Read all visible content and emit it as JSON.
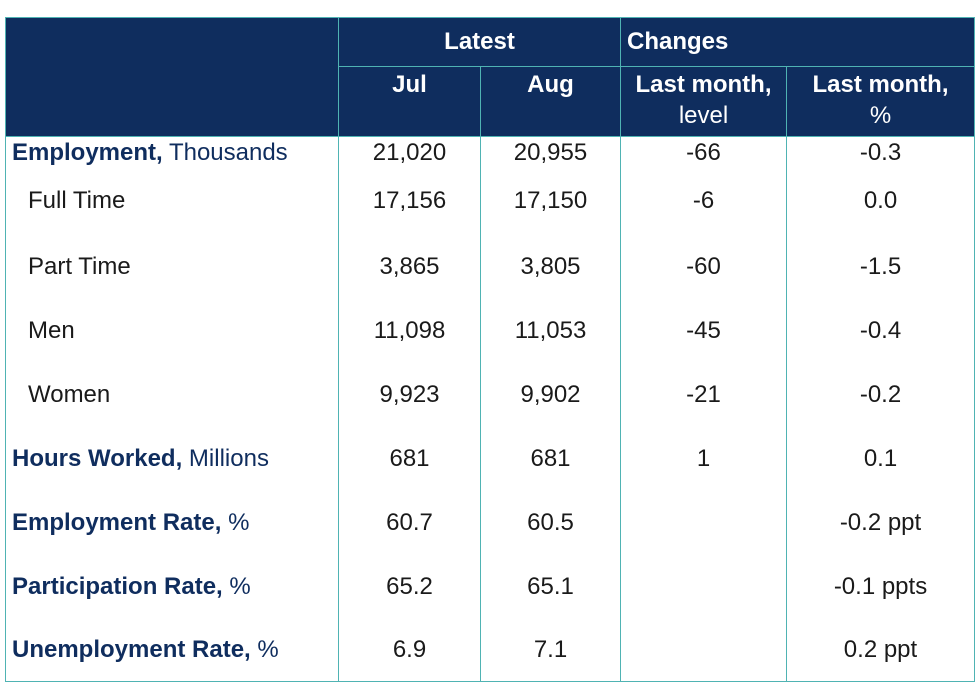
{
  "header": {
    "latest": "Latest",
    "changes": "Changes",
    "jul": "Jul",
    "aug": "Aug",
    "last_month_level_1": "Last month,",
    "last_month_level_2": "level",
    "last_month_pct_1": "Last month,",
    "last_month_pct_2": "%"
  },
  "rows": [
    {
      "name": "Employment,",
      "unit": "Thousands",
      "jul": "21,020",
      "aug": "20,955",
      "level": "-66",
      "pct": "-0.3"
    },
    {
      "name": "Full Time",
      "jul": "17,156",
      "aug": "17,150",
      "level": "-6",
      "pct": "0.0"
    },
    {
      "name": "Part Time",
      "jul": "3,865",
      "aug": "3,805",
      "level": "-60",
      "pct": "-1.5"
    },
    {
      "name": "Men",
      "jul": "11,098",
      "aug": "11,053",
      "level": "-45",
      "pct": "-0.4"
    },
    {
      "name": "Women",
      "jul": "9,923",
      "aug": "9,902",
      "level": "-21",
      "pct": "-0.2"
    },
    {
      "name": "Hours Worked,",
      "unit": "Millions",
      "jul": "681",
      "aug": "681",
      "level": "1",
      "pct": "0.1"
    },
    {
      "name": "Employment Rate,",
      "unit": "%",
      "jul": "60.7",
      "aug": "60.5",
      "level": "",
      "pct": "-0.2 ppt"
    },
    {
      "name": "Participation Rate,",
      "unit": "%",
      "jul": "65.2",
      "aug": "65.1",
      "level": "",
      "pct": "-0.1 ppts"
    },
    {
      "name": "Unemployment Rate,",
      "unit": "%",
      "jul": "6.9",
      "aug": "7.1",
      "level": "",
      "pct": "0.2 ppt"
    }
  ],
  "colors": {
    "header_bg": "#0f2d5e",
    "border": "#4fb3b3",
    "label_bold": "#0f2d5e"
  }
}
